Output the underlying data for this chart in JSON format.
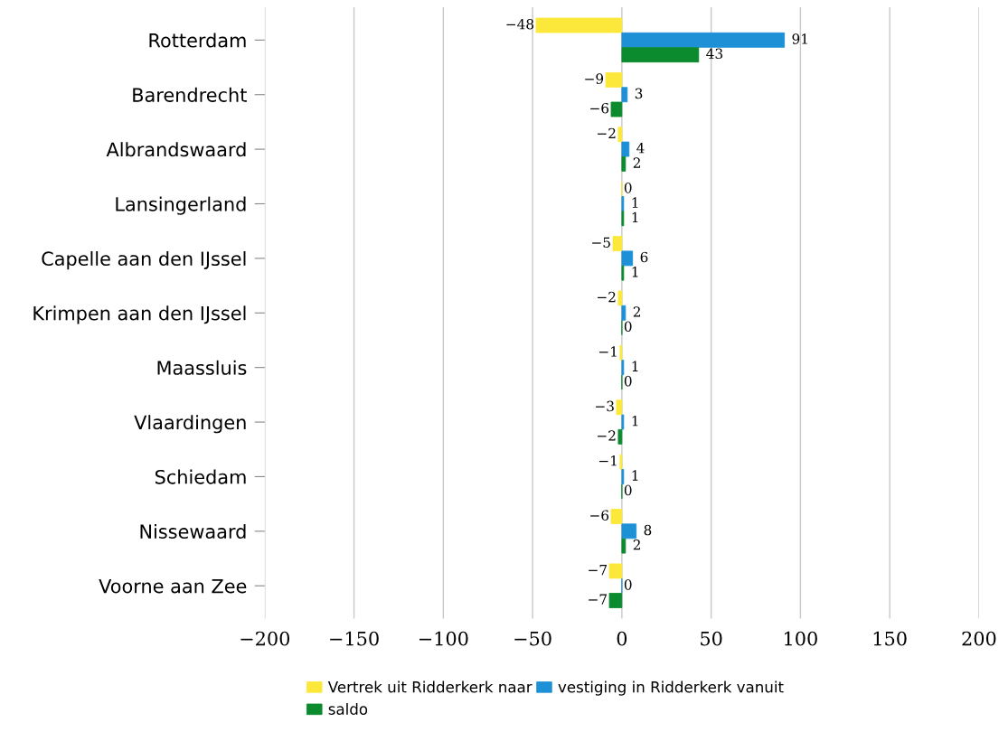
{
  "chart_data": {
    "type": "bar",
    "orientation": "horizontal",
    "categories": [
      "Rotterdam",
      "Barendrecht",
      "Albrandswaard",
      "Lansingerland",
      "Capelle aan den IJssel",
      "Krimpen aan den IJssel",
      "Maassluis",
      "Vlaardingen",
      "Schiedam",
      "Nissewaard",
      "Voorne aan Zee"
    ],
    "series": [
      {
        "name": "Vertrek uit Ridderkerk naar",
        "color": "#fce83a",
        "values": [
          -48,
          -9,
          -2,
          0,
          -5,
          -2,
          -1,
          -3,
          -1,
          -6,
          -7
        ]
      },
      {
        "name": "vestiging in Ridderkerk vanuit",
        "color": "#1e90d6",
        "values": [
          91,
          3,
          4,
          1,
          6,
          2,
          1,
          1,
          1,
          8,
          0
        ]
      },
      {
        "name": "saldo",
        "color": "#0b8a2e",
        "values": [
          43,
          -6,
          2,
          1,
          1,
          0,
          0,
          -2,
          0,
          2,
          -7
        ]
      }
    ],
    "xlim": [
      -200,
      200
    ],
    "xticks": [
      -200,
      -150,
      -100,
      -50,
      0,
      50,
      100,
      150,
      200
    ],
    "grid": "x",
    "legend": "bottom",
    "data_labels": true
  }
}
